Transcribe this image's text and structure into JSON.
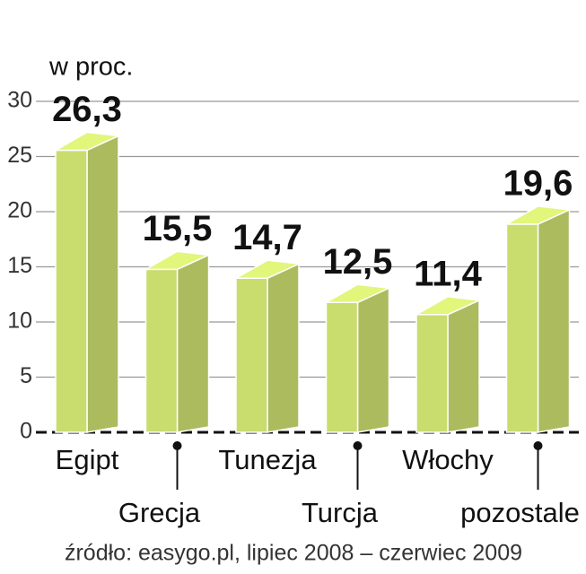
{
  "chart_data": {
    "type": "bar3d",
    "subtitle": "w proc.",
    "source": "źródło: easygo.pl, lipiec 2008 – czerwiec 2009",
    "categories": [
      "Egipt",
      "Grecja",
      "Tunezja",
      "Turcja",
      "Włochy",
      "pozostale"
    ],
    "values": [
      26.3,
      15.5,
      14.7,
      12.5,
      11.4,
      19.6
    ],
    "value_labels": [
      "26,3",
      "15,5",
      "14,7",
      "12,5",
      "11,4",
      "19,6"
    ],
    "color": "#c9dc6e",
    "ylim": [
      0,
      30
    ],
    "yticks": [
      0,
      5,
      10,
      15,
      20,
      25,
      30
    ],
    "grid": true
  }
}
